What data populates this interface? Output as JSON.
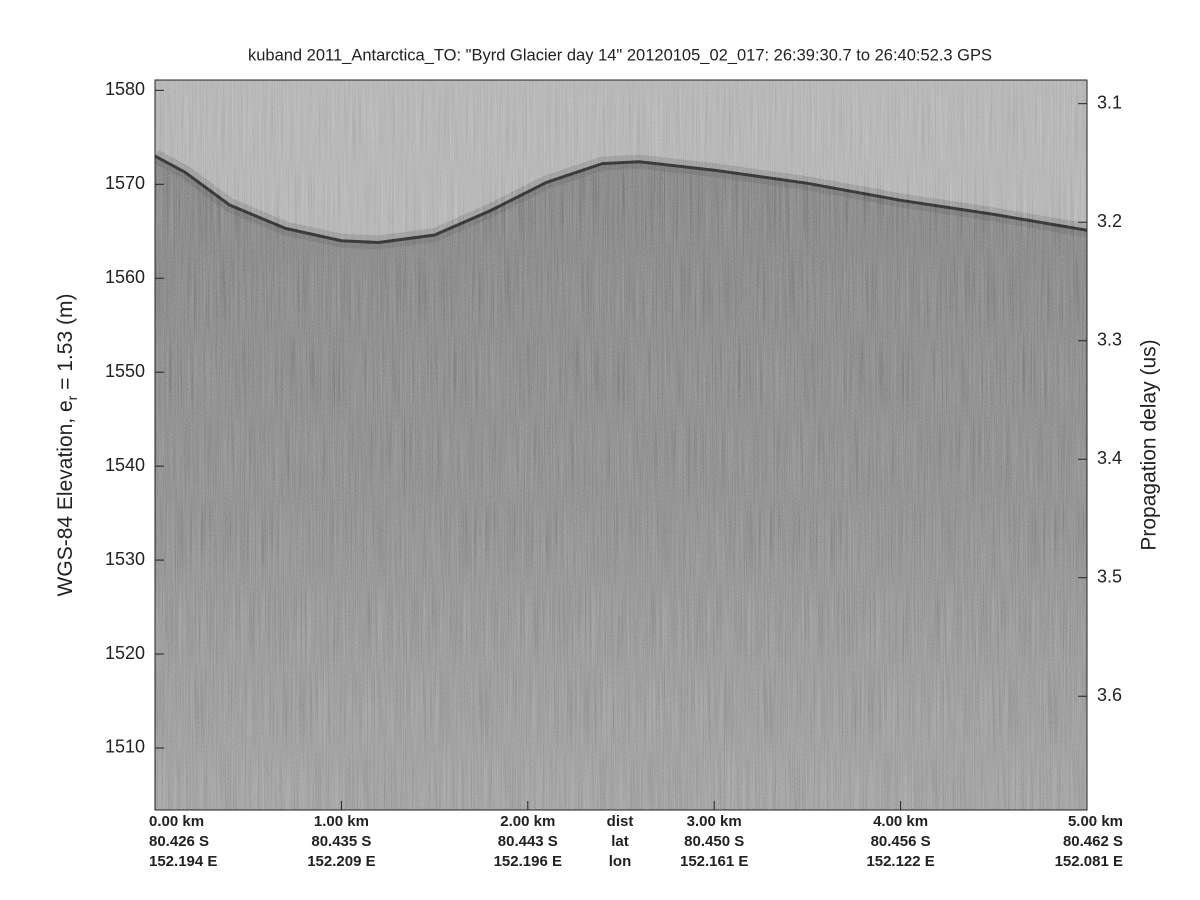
{
  "chart_data": {
    "type": "echogram",
    "title": "kuband 2011_Antarctica_TO: \"Byrd Glacier day 14\"  20120105_02_017: 26:39:30.7 to 26:40:52.3 GPS",
    "ylabel": [
      "WGS-84 Elevation, e",
      "r",
      " = 1.53 (m)"
    ],
    "y2label": "Propagation delay (us)",
    "xlim": [
      0,
      5
    ],
    "xticks": [
      {
        "value": 0,
        "label": "0.00 km"
      },
      {
        "value": 1,
        "label": "1.00 km"
      },
      {
        "value": 2,
        "label": "2.00 km"
      },
      {
        "value": 3,
        "label": "3.00 km"
      },
      {
        "value": 4,
        "label": "4.00 km"
      },
      {
        "value": 5,
        "label": "5.00 km"
      }
    ],
    "lat_labels": [
      "80.426 S",
      "80.435 S",
      "80.443 S",
      "80.450 S",
      "80.456 S",
      "80.462 S"
    ],
    "lon_labels": [
      "152.194 E",
      "152.209 E",
      "152.196 E",
      "152.161 E",
      "152.122 E",
      "152.081 E"
    ],
    "row_names": [
      "dist",
      "lat",
      "lon"
    ],
    "ylim": [
      1503.4,
      1581.1
    ],
    "yticks": [
      1510,
      1520,
      1530,
      1540,
      1550,
      1560,
      1570,
      1580
    ],
    "y2lim": [
      3.696,
      3.08
    ],
    "y2ticks": [
      3.1,
      3.2,
      3.3,
      3.4,
      3.5,
      3.6
    ],
    "surface": {
      "x": [
        0,
        0.16,
        0.4,
        0.7,
        1.0,
        1.2,
        1.5,
        1.8,
        2.1,
        2.4,
        2.6,
        3.0,
        3.5,
        4.0,
        4.5,
        5.0
      ],
      "values": [
        1573,
        1571.3,
        1567.8,
        1565.3,
        1564,
        1563.8,
        1564.6,
        1567.2,
        1570.2,
        1572.2,
        1572.4,
        1571.5,
        1570.1,
        1568.3,
        1566.8,
        1565.1
      ],
      "color": "#2e2e2e"
    }
  }
}
